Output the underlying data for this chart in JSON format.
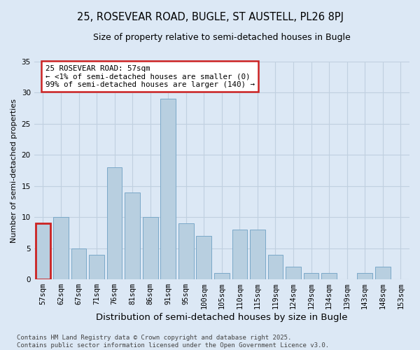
{
  "title": "25, ROSEVEAR ROAD, BUGLE, ST AUSTELL, PL26 8PJ",
  "subtitle": "Size of property relative to semi-detached houses in Bugle",
  "xlabel": "Distribution of semi-detached houses by size in Bugle",
  "ylabel": "Number of semi-detached properties",
  "categories": [
    "57sqm",
    "62sqm",
    "67sqm",
    "71sqm",
    "76sqm",
    "81sqm",
    "86sqm",
    "91sqm",
    "95sqm",
    "100sqm",
    "105sqm",
    "110sqm",
    "115sqm",
    "119sqm",
    "124sqm",
    "129sqm",
    "134sqm",
    "139sqm",
    "143sqm",
    "148sqm",
    "153sqm"
  ],
  "values": [
    9,
    10,
    5,
    4,
    18,
    14,
    10,
    29,
    9,
    7,
    1,
    8,
    8,
    4,
    2,
    1,
    1,
    0,
    1,
    2,
    0
  ],
  "highlight_index": 0,
  "highlight_color": "#c8d8eb",
  "bar_color": "#b8cfe0",
  "bar_edge_color": "#7aa8c8",
  "background_color": "#dce8f5",
  "plot_bg_color": "#dce8f5",
  "annotation_box_color": "#ffffff",
  "annotation_border_color": "#cc2222",
  "annotation_text_line1": "25 ROSEVEAR ROAD: 57sqm",
  "annotation_text_line2": "← <1% of semi-detached houses are smaller (0)",
  "annotation_text_line3": "99% of semi-detached houses are larger (140) →",
  "footer": "Contains HM Land Registry data © Crown copyright and database right 2025.\nContains public sector information licensed under the Open Government Licence v3.0.",
  "ylim": [
    0,
    35
  ],
  "yticks": [
    0,
    5,
    10,
    15,
    20,
    25,
    30,
    35
  ],
  "grid_color": "#c0d0e0",
  "title_fontsize": 10.5,
  "subtitle_fontsize": 9,
  "tick_fontsize": 7.5,
  "ylabel_fontsize": 8,
  "xlabel_fontsize": 9.5,
  "footer_fontsize": 6.5
}
